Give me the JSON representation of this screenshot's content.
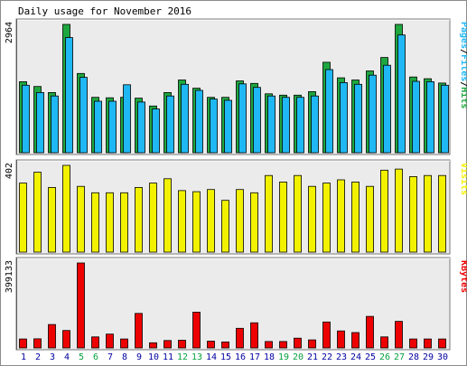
{
  "title": "Daily usage for November 2016",
  "colors": {
    "background": "#ffffff",
    "panel": "#ebebeb",
    "grid": "#c0c0c0",
    "hits": "#1fa73f",
    "files": "#1fb8f4",
    "pages": "#1fb8f4",
    "visits": "#f2f200",
    "kbytes": "#ed0000",
    "weekend_day": "#07a03f",
    "weekday": "#0000a0"
  },
  "chart_data": [
    {
      "type": "bar",
      "name": "hits-files-pages",
      "ymax_label": "2964",
      "ylim": [
        0,
        2964
      ],
      "legend": [
        "Pages",
        "Files",
        "Hits"
      ],
      "legend_colors": [
        "#1fb8f4",
        "#1fb8f4",
        "#1fa73f"
      ],
      "categories": [
        "1",
        "2",
        "3",
        "4",
        "5",
        "6",
        "7",
        "8",
        "9",
        "10",
        "11",
        "12",
        "13",
        "14",
        "15",
        "16",
        "17",
        "18",
        "19",
        "20",
        "21",
        "22",
        "23",
        "24",
        "25",
        "26",
        "27",
        "28",
        "29",
        "30"
      ],
      "series": [
        {
          "name": "Hits",
          "values": [
            1640,
            1530,
            1390,
            2964,
            1830,
            1280,
            1270,
            1280,
            1260,
            1080,
            1390,
            1680,
            1490,
            1280,
            1280,
            1660,
            1600,
            1360,
            1330,
            1330,
            1410,
            2090,
            1730,
            1680,
            1890,
            2200,
            2964,
            1750,
            1710,
            1610
          ]
        },
        {
          "name": "Files",
          "values": [
            1560,
            1390,
            1310,
            2660,
            1740,
            1190,
            1190,
            1570,
            1170,
            1010,
            1310,
            1580,
            1440,
            1240,
            1210,
            1590,
            1510,
            1310,
            1280,
            1280,
            1310,
            1920,
            1620,
            1580,
            1790,
            2020,
            2720,
            1650,
            1640,
            1560
          ]
        },
        {
          "name": "Pages",
          "values": [
            1560,
            1390,
            1310,
            2660,
            1740,
            1190,
            1190,
            1570,
            1170,
            1010,
            1310,
            1580,
            1440,
            1240,
            1210,
            1590,
            1510,
            1310,
            1280,
            1280,
            1310,
            1920,
            1620,
            1580,
            1790,
            2020,
            2720,
            1650,
            1640,
            1560
          ]
        }
      ]
    },
    {
      "type": "bar",
      "name": "visits",
      "ymax_label": "402",
      "ylim": [
        0,
        402
      ],
      "legend": [
        "Visits"
      ],
      "categories": [
        "1",
        "2",
        "3",
        "4",
        "5",
        "6",
        "7",
        "8",
        "9",
        "10",
        "11",
        "12",
        "13",
        "14",
        "15",
        "16",
        "17",
        "18",
        "19",
        "20",
        "21",
        "22",
        "23",
        "24",
        "25",
        "26",
        "27",
        "28",
        "29",
        "30"
      ],
      "series": [
        {
          "name": "Visits",
          "values": [
            320,
            370,
            300,
            402,
            305,
            275,
            275,
            275,
            300,
            320,
            340,
            285,
            280,
            290,
            240,
            290,
            275,
            355,
            325,
            355,
            305,
            320,
            335,
            325,
            305,
            380,
            385,
            350,
            355,
            355
          ]
        }
      ]
    },
    {
      "type": "bar",
      "name": "kbytes",
      "ymax_label": "399133",
      "ylim": [
        0,
        399133
      ],
      "legend": [
        "KBytes"
      ],
      "categories": [
        "1",
        "2",
        "3",
        "4",
        "5",
        "6",
        "7",
        "8",
        "9",
        "10",
        "11",
        "12",
        "13",
        "14",
        "15",
        "16",
        "17",
        "18",
        "19",
        "20",
        "21",
        "22",
        "23",
        "24",
        "25",
        "26",
        "27",
        "28",
        "29",
        "30"
      ],
      "series": [
        {
          "name": "KBytes",
          "values": [
            42000,
            43000,
            110000,
            82000,
            399133,
            52000,
            65000,
            42000,
            162000,
            24000,
            35000,
            36000,
            168000,
            32000,
            28000,
            92000,
            118000,
            30000,
            30000,
            46000,
            38000,
            122000,
            80000,
            72000,
            148000,
            52000,
            125000,
            42000,
            42000,
            42000
          ]
        }
      ]
    }
  ],
  "x_axis": {
    "days": [
      "1",
      "2",
      "3",
      "4",
      "5",
      "6",
      "7",
      "8",
      "9",
      "10",
      "11",
      "12",
      "13",
      "14",
      "15",
      "16",
      "17",
      "18",
      "19",
      "20",
      "21",
      "22",
      "23",
      "24",
      "25",
      "26",
      "27",
      "28",
      "29",
      "30"
    ],
    "weekend": [
      5,
      6,
      12,
      13,
      19,
      20,
      26,
      27
    ]
  }
}
